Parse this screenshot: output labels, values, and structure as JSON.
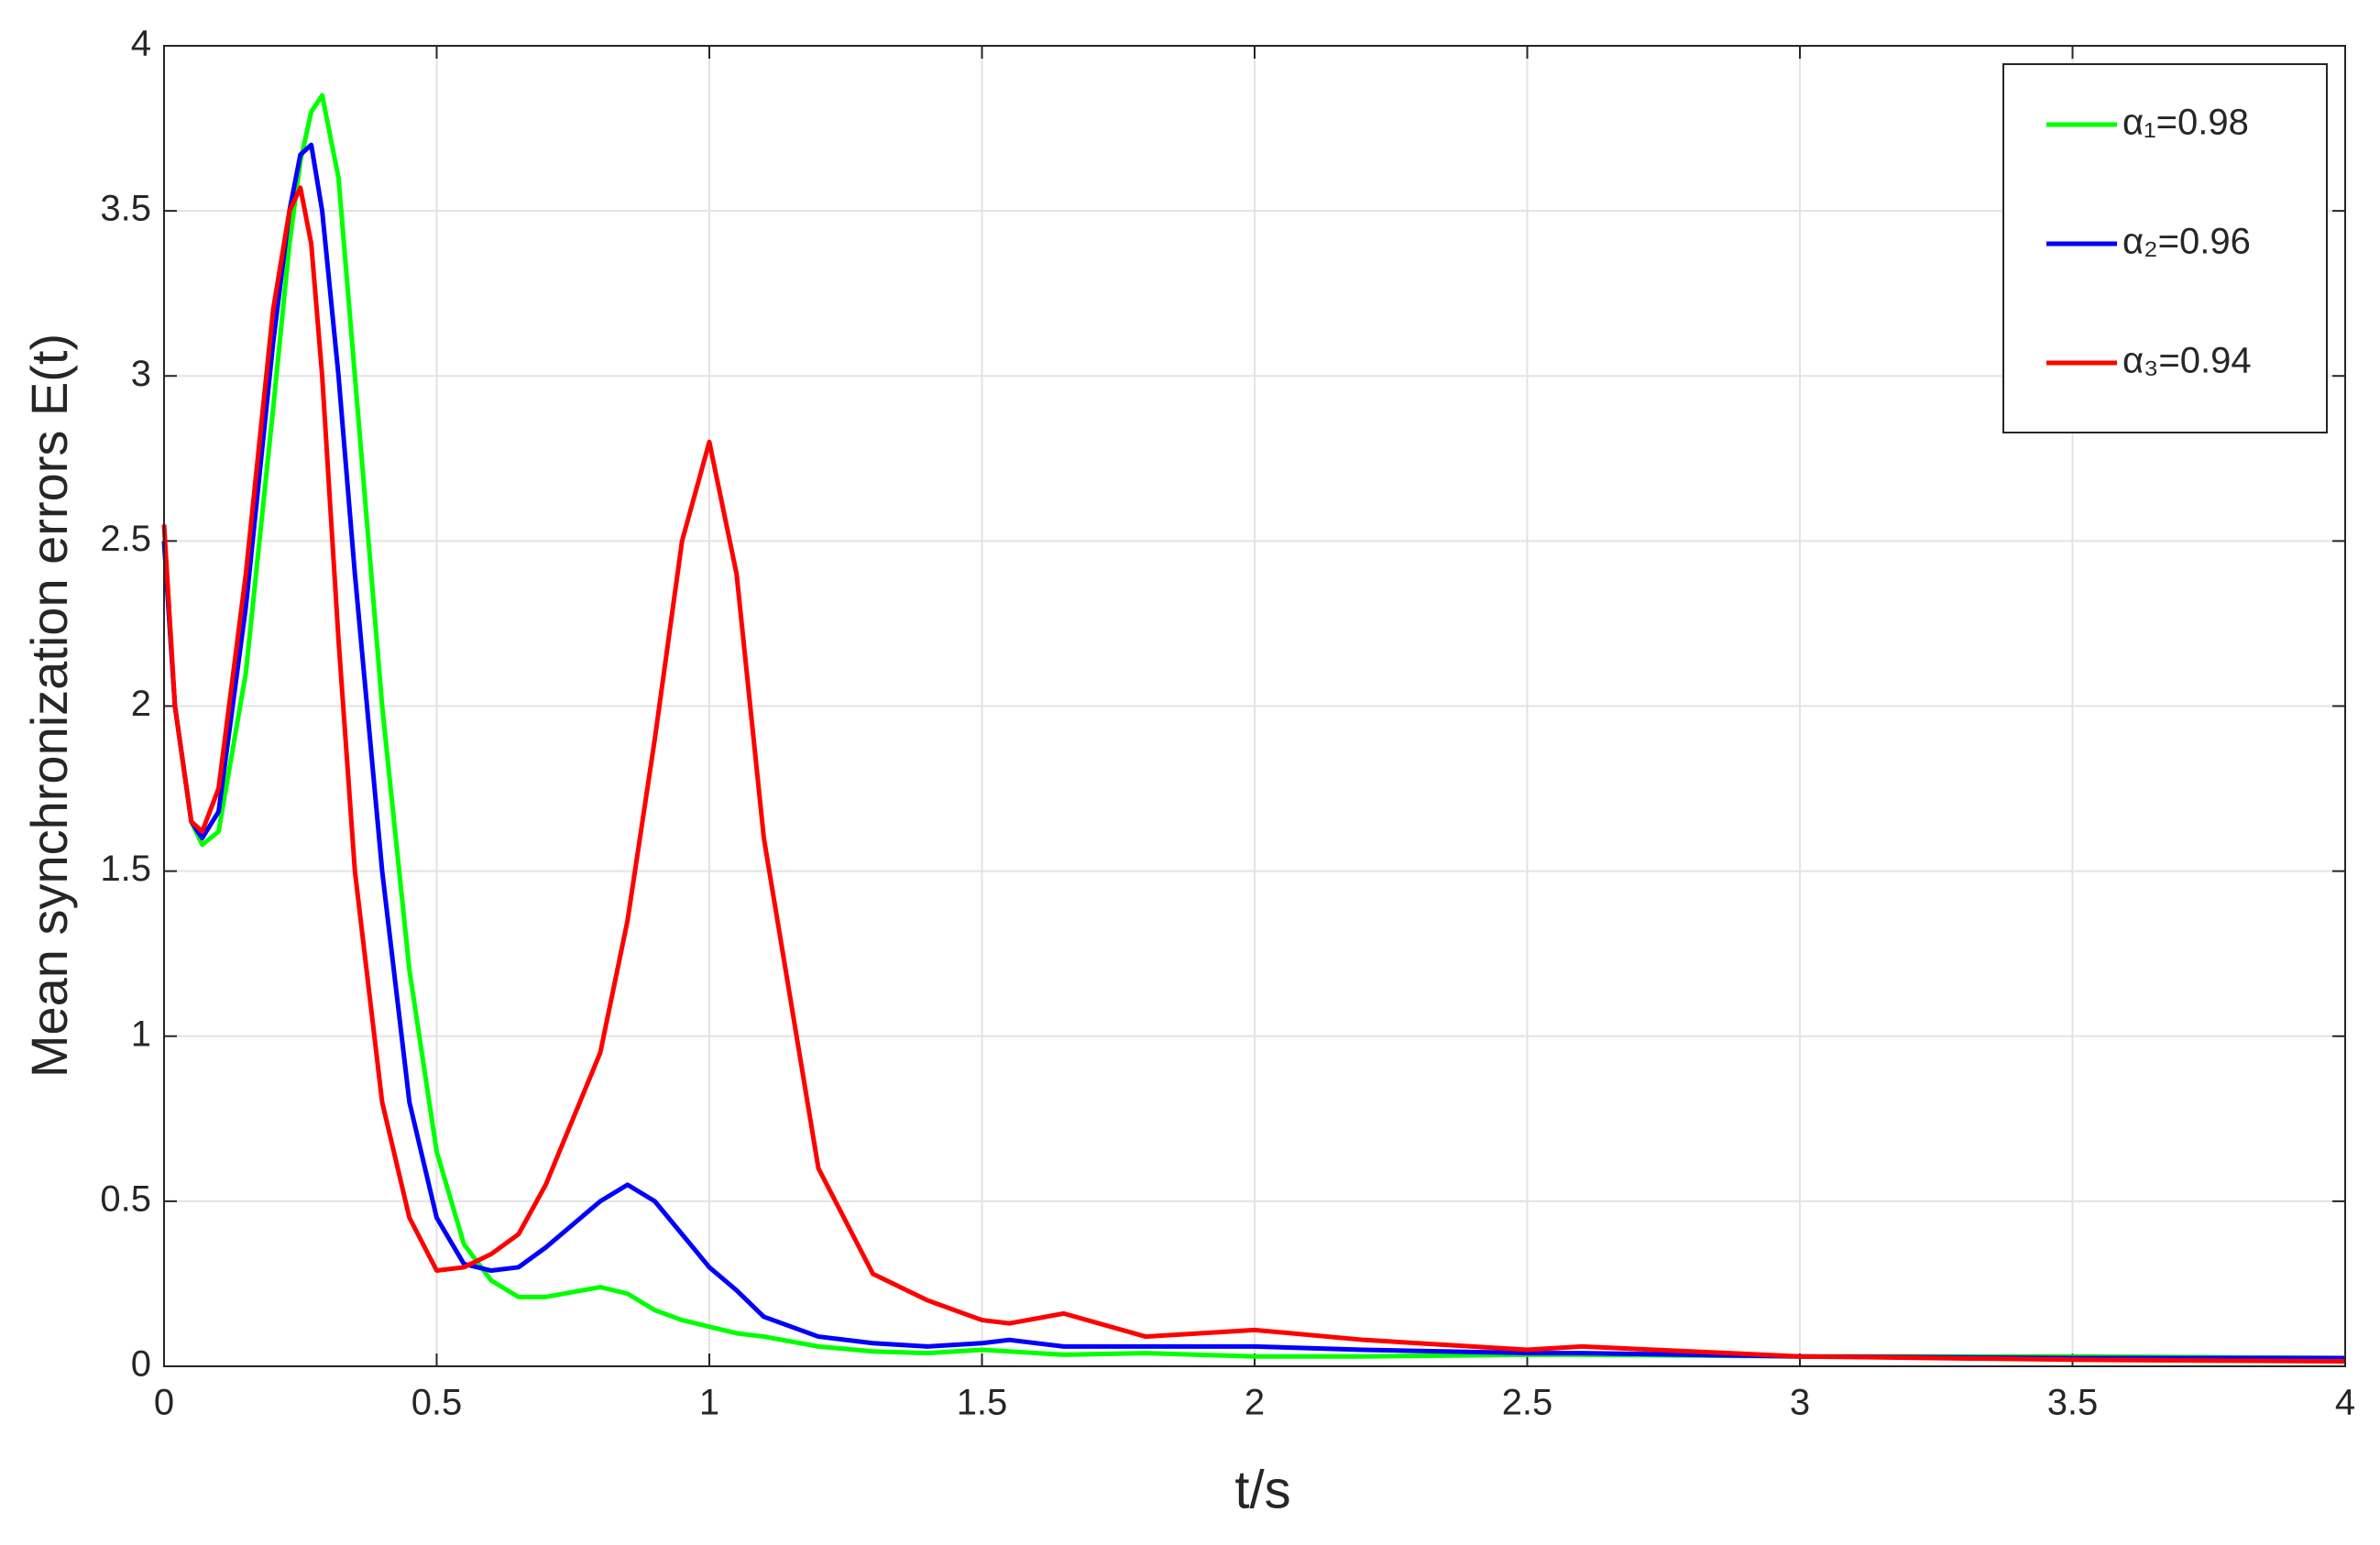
{
  "chart_data": {
    "type": "line",
    "xlabel": "t/s",
    "ylabel": "Mean synchronization errors E(t)",
    "x": [
      0,
      0.02,
      0.05,
      0.07,
      0.1,
      0.15,
      0.2,
      0.23,
      0.25,
      0.27,
      0.29,
      0.32,
      0.35,
      0.4,
      0.45,
      0.5,
      0.55,
      0.6,
      0.65,
      0.7,
      0.8,
      0.85,
      0.9,
      0.95,
      1.0,
      1.05,
      1.1,
      1.2,
      1.3,
      1.4,
      1.5,
      1.55,
      1.65,
      1.8,
      2.0,
      2.2,
      2.5,
      2.6,
      3.0,
      3.5,
      4.0
    ],
    "series": [
      {
        "name": "α₁=0.98",
        "color": "#00ff00",
        "values": [
          2.5,
          2.0,
          1.65,
          1.58,
          1.62,
          2.1,
          2.9,
          3.4,
          3.65,
          3.8,
          3.85,
          3.6,
          3.0,
          2.0,
          1.2,
          0.65,
          0.37,
          0.26,
          0.21,
          0.21,
          0.24,
          0.22,
          0.17,
          0.14,
          0.12,
          0.1,
          0.09,
          0.06,
          0.045,
          0.04,
          0.05,
          0.045,
          0.035,
          0.04,
          0.03,
          0.03,
          0.035,
          0.035,
          0.03,
          0.03,
          0.025
        ]
      },
      {
        "name": "α₂=0.96",
        "color": "#0000ff",
        "values": [
          2.5,
          2.0,
          1.65,
          1.6,
          1.68,
          2.3,
          3.1,
          3.5,
          3.67,
          3.7,
          3.5,
          3.0,
          2.4,
          1.5,
          0.8,
          0.45,
          0.31,
          0.29,
          0.3,
          0.36,
          0.5,
          0.55,
          0.5,
          0.4,
          0.3,
          0.23,
          0.15,
          0.09,
          0.07,
          0.06,
          0.07,
          0.08,
          0.06,
          0.06,
          0.06,
          0.05,
          0.04,
          0.04,
          0.03,
          0.025,
          0.025
        ]
      },
      {
        "name": "α₃=0.94",
        "color": "#ff0000",
        "values": [
          2.55,
          2.0,
          1.65,
          1.62,
          1.75,
          2.4,
          3.2,
          3.5,
          3.57,
          3.4,
          3.0,
          2.2,
          1.5,
          0.8,
          0.45,
          0.29,
          0.3,
          0.34,
          0.4,
          0.55,
          0.95,
          1.35,
          1.9,
          2.5,
          2.8,
          2.4,
          1.6,
          0.6,
          0.28,
          0.2,
          0.14,
          0.13,
          0.16,
          0.09,
          0.11,
          0.08,
          0.05,
          0.06,
          0.03,
          0.02,
          0.015
        ]
      }
    ],
    "xlim": [
      0,
      4
    ],
    "xticks": [
      0,
      0.5,
      1,
      1.5,
      2,
      2.5,
      3,
      3.5,
      4
    ],
    "ylim": [
      0,
      4
    ],
    "yticks": [
      0,
      0.5,
      1,
      1.5,
      2,
      2.5,
      3,
      3.5,
      4
    ],
    "grid": true,
    "legend": "upper right"
  }
}
